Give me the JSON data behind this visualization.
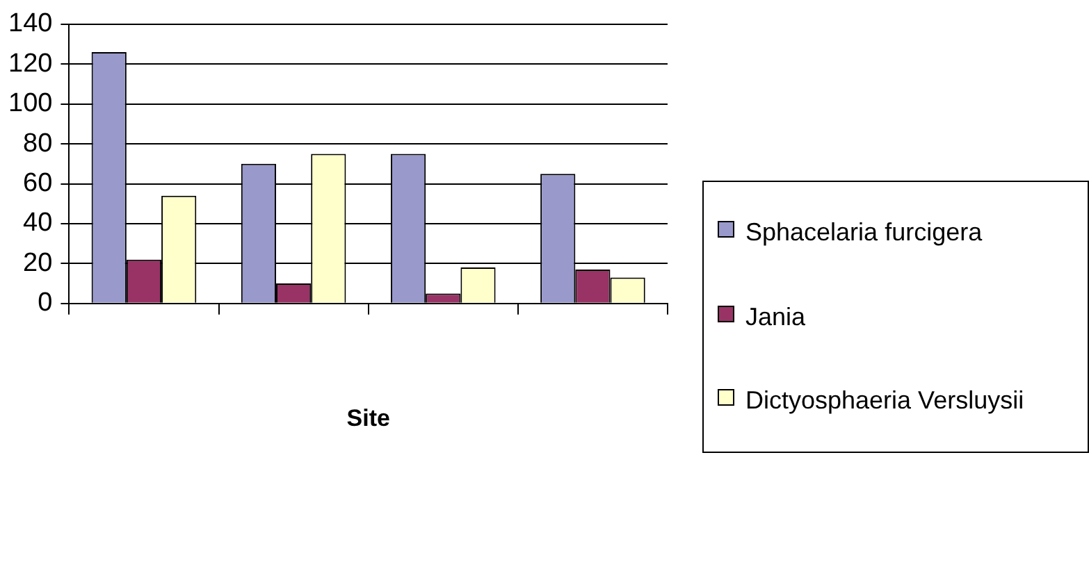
{
  "chart_data": {
    "type": "bar",
    "xlabel": "Site",
    "categories": [
      null,
      null,
      null,
      null
    ],
    "series": [
      {
        "name": "Sphacelaria furcigera",
        "color": "#9999cc",
        "values": [
          126,
          70,
          75,
          65
        ]
      },
      {
        "name": "Jania",
        "color": "#993366",
        "values": [
          22,
          10,
          5,
          17
        ]
      },
      {
        "name": "Dictyosphaeria Versluysii",
        "color": "#ffffcc",
        "values": [
          54,
          75,
          18,
          13
        ]
      }
    ],
    "ylim": [
      0,
      140
    ],
    "yticks": [
      0,
      20,
      40,
      60,
      80,
      100,
      120,
      140
    ],
    "grid": "y",
    "legend": "right"
  }
}
